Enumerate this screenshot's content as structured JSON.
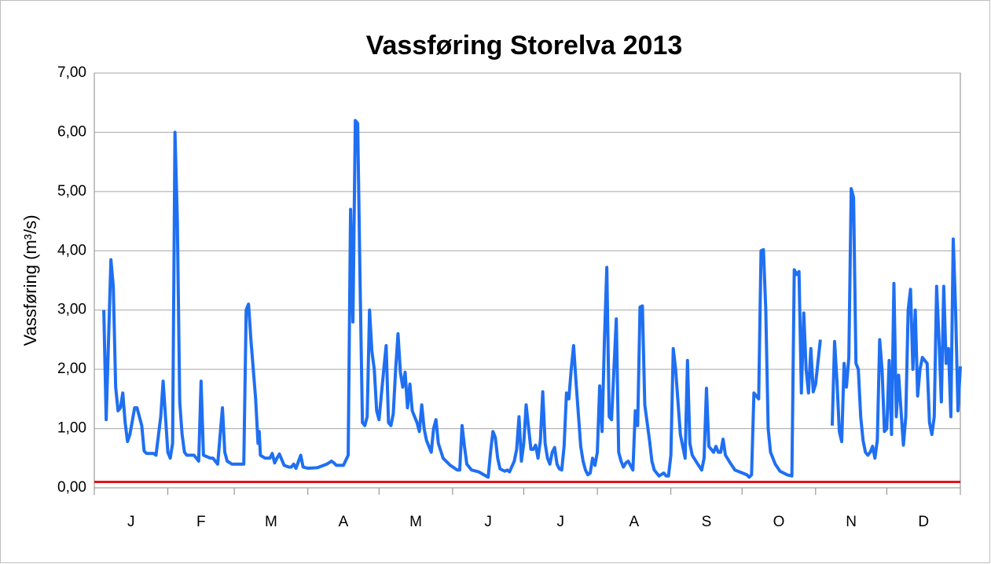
{
  "chart_data": {
    "type": "line",
    "title": "Vassføring Storelva 2013",
    "y_label": "Vassføring (m³/s)",
    "xlim": [
      0,
      365
    ],
    "xticks": [
      0,
      31,
      59,
      90,
      120,
      151,
      181,
      212,
      243,
      273,
      304,
      334,
      365
    ],
    "month_labels": [
      "J",
      "F",
      "M",
      "A",
      "M",
      "J",
      "J",
      "A",
      "S",
      "O",
      "N",
      "D"
    ],
    "ylim": [
      0,
      7
    ],
    "yticks": [
      {
        "value": 0,
        "label": "0,00"
      },
      {
        "value": 1,
        "label": "1,00"
      },
      {
        "value": 2,
        "label": "2,00"
      },
      {
        "value": 3,
        "label": "3,00"
      },
      {
        "value": 4,
        "label": "4,00"
      },
      {
        "value": 5,
        "label": "5,00"
      },
      {
        "value": 6,
        "label": "6,00"
      },
      {
        "value": 7,
        "label": "7,00"
      }
    ],
    "grid": true,
    "reference_lines": [
      {
        "y": 0.1,
        "color": "#e8101a"
      }
    ],
    "series": [
      {
        "color": "#1f6ff2",
        "x": [
          4,
          5,
          7,
          8,
          9,
          10,
          11,
          12,
          13,
          14,
          15,
          17,
          18,
          20,
          21,
          22,
          25,
          26,
          28,
          29,
          30,
          31,
          32,
          33,
          34,
          35,
          36,
          37,
          38,
          39,
          42,
          44,
          45,
          46,
          49,
          50,
          52,
          54,
          55,
          56,
          58,
          63,
          64,
          65,
          66,
          68,
          69,
          69.5,
          70,
          72,
          74,
          75,
          76,
          77,
          78,
          80,
          82,
          83,
          84,
          85,
          87,
          88,
          90,
          94,
          98,
          100,
          101,
          102,
          105,
          107,
          108,
          109,
          110,
          111,
          112,
          113,
          114,
          115,
          116,
          117,
          118,
          119,
          120,
          122,
          123,
          124,
          125,
          126,
          127,
          128,
          129,
          130,
          131,
          132,
          133,
          134,
          135,
          136,
          137,
          138,
          139,
          140,
          142,
          143,
          144,
          145,
          147,
          150,
          153,
          154,
          155,
          156,
          157,
          159,
          162,
          165,
          166,
          167,
          168,
          169,
          170,
          171,
          173,
          174,
          175,
          177,
          178,
          179,
          180,
          181,
          182,
          184,
          185,
          186,
          187,
          188,
          189,
          190,
          191,
          192,
          193,
          194,
          195,
          196,
          197,
          198,
          199,
          200,
          201,
          202,
          203,
          205,
          206,
          207,
          208,
          209,
          210,
          211,
          212,
          213,
          214,
          215,
          216,
          217,
          218,
          220,
          221,
          222,
          223,
          224,
          225,
          227,
          228,
          229,
          230,
          231,
          232,
          234,
          235,
          236,
          238,
          240,
          241,
          242,
          243,
          244,
          245,
          247,
          248,
          249,
          250,
          251,
          252,
          254,
          256,
          257,
          258,
          259,
          261,
          262,
          263,
          264,
          265,
          266,
          268,
          270,
          275,
          276,
          277,
          278,
          280,
          281,
          282,
          283,
          284,
          285,
          287,
          289,
          292,
          294,
          295,
          296,
          297,
          298,
          299,
          300,
          301,
          302,
          303,
          304,
          306,
          308,
          311,
          312,
          313,
          314,
          315,
          316,
          317,
          318,
          319,
          320,
          321,
          322,
          323,
          324,
          325,
          326,
          327,
          328,
          329,
          330,
          331,
          332,
          333,
          334,
          335,
          336,
          337,
          338,
          339,
          340,
          341,
          342,
          343,
          344,
          345,
          346,
          347,
          348,
          349,
          350,
          351,
          352,
          353,
          354,
          355,
          356,
          357,
          358,
          359,
          360,
          361,
          362,
          363,
          364,
          365
        ],
        "values": [
          3.0,
          1.15,
          3.85,
          3.4,
          1.7,
          1.3,
          1.35,
          1.6,
          1.1,
          0.78,
          0.9,
          1.35,
          1.35,
          1.05,
          0.62,
          0.58,
          0.58,
          0.55,
          1.2,
          1.8,
          1.2,
          0.6,
          0.5,
          0.75,
          6.0,
          4.5,
          1.45,
          0.9,
          0.6,
          0.55,
          0.55,
          0.45,
          1.8,
          0.55,
          0.5,
          0.5,
          0.4,
          1.35,
          0.6,
          0.45,
          0.4,
          0.4,
          3.0,
          3.1,
          2.5,
          1.5,
          0.75,
          0.95,
          0.55,
          0.5,
          0.5,
          0.58,
          0.42,
          0.5,
          0.57,
          0.38,
          0.35,
          0.35,
          0.4,
          0.33,
          0.55,
          0.35,
          0.33,
          0.34,
          0.4,
          0.45,
          0.42,
          0.38,
          0.38,
          0.55,
          4.7,
          2.8,
          6.2,
          6.15,
          3.5,
          1.1,
          1.05,
          1.2,
          3.0,
          2.3,
          2.0,
          1.3,
          1.15,
          2.0,
          2.4,
          1.1,
          1.05,
          1.25,
          2.0,
          2.6,
          1.95,
          1.7,
          1.95,
          1.35,
          1.75,
          1.3,
          1.2,
          1.1,
          0.95,
          1.4,
          1.0,
          0.8,
          0.6,
          1.0,
          1.15,
          0.75,
          0.5,
          0.38,
          0.3,
          0.3,
          1.05,
          0.7,
          0.4,
          0.3,
          0.27,
          0.2,
          0.18,
          0.6,
          0.95,
          0.85,
          0.5,
          0.32,
          0.28,
          0.3,
          0.27,
          0.45,
          0.65,
          1.2,
          0.45,
          0.75,
          1.4,
          0.65,
          0.65,
          0.72,
          0.5,
          0.8,
          1.62,
          0.75,
          0.5,
          0.4,
          0.6,
          0.68,
          0.4,
          0.32,
          0.3,
          0.7,
          1.6,
          1.5,
          2.0,
          2.4,
          1.8,
          0.7,
          0.45,
          0.3,
          0.22,
          0.25,
          0.5,
          0.38,
          0.6,
          1.72,
          0.95,
          2.5,
          3.72,
          1.2,
          1.15,
          2.85,
          0.6,
          0.45,
          0.35,
          0.42,
          0.45,
          0.3,
          1.3,
          1.05,
          3.05,
          3.07,
          1.4,
          0.8,
          0.45,
          0.3,
          0.2,
          0.25,
          0.2,
          0.2,
          0.55,
          2.35,
          2.0,
          0.9,
          0.7,
          0.5,
          2.15,
          0.75,
          0.55,
          0.42,
          0.3,
          0.5,
          1.68,
          0.7,
          0.6,
          0.7,
          0.6,
          0.6,
          0.82,
          0.55,
          0.42,
          0.3,
          0.22,
          0.18,
          0.22,
          1.6,
          1.5,
          4.0,
          4.02,
          3.0,
          1.0,
          0.6,
          0.4,
          0.28,
          0.22,
          0.2,
          3.68,
          3.6,
          3.65,
          1.6,
          2.95,
          2.0,
          1.6,
          2.35,
          1.62,
          1.75,
          2.5,
          null,
          1.05,
          2.47,
          1.8,
          0.95,
          0.78,
          2.1,
          1.7,
          2.2,
          5.05,
          4.9,
          2.1,
          2.0,
          1.2,
          0.8,
          0.6,
          0.55,
          0.6,
          0.7,
          0.5,
          0.8,
          2.5,
          2.0,
          0.95,
          1.0,
          2.15,
          0.9,
          3.45,
          1.2,
          1.9,
          1.3,
          0.72,
          1.2,
          3.0,
          3.35,
          2.0,
          3.0,
          1.55,
          2.0,
          2.2,
          2.15,
          2.1,
          1.1,
          0.9,
          1.2,
          3.4,
          2.5,
          1.45,
          3.4,
          2.1,
          2.35,
          1.2,
          4.2,
          3.0,
          1.3,
          2.05
        ]
      }
    ]
  }
}
